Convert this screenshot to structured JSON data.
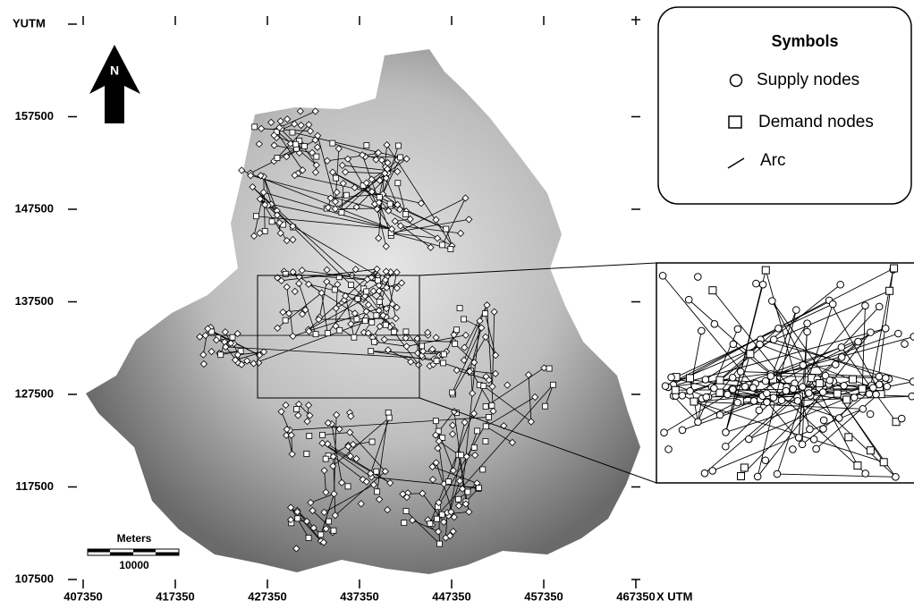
{
  "map": {
    "axes": {
      "y_label": "YUTM",
      "x_label": "X UTM",
      "xlim": [
        407350,
        467350
      ],
      "ylim": [
        107500,
        167500
      ],
      "xticks": [
        407350,
        417350,
        427350,
        437350,
        447350,
        457350,
        467350
      ],
      "yticks": [
        107500,
        117500,
        127500,
        137500,
        147500,
        157500
      ]
    },
    "north": "N",
    "scale": {
      "unit": "Meters",
      "distance": 10000
    },
    "legend": {
      "title": "Symbols",
      "items": [
        "Supply nodes",
        "Demand nodes",
        "Arc"
      ]
    }
  }
}
